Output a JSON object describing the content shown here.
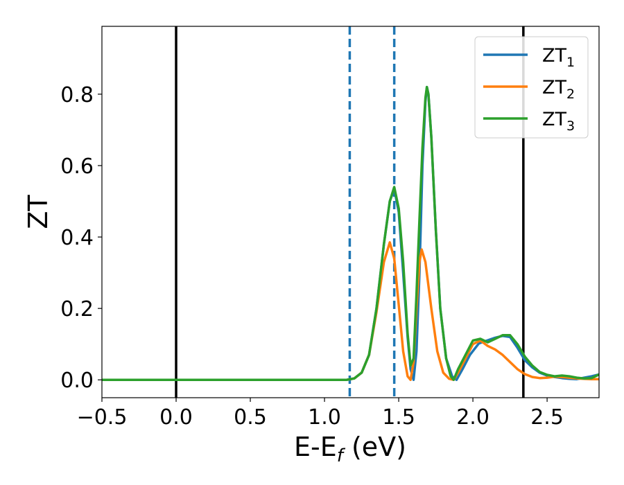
{
  "chart_data": {
    "type": "line",
    "title": "",
    "xlabel": {
      "main": "E-E",
      "subscript": "f",
      "tail": " (eV)"
    },
    "ylabel": "ZT",
    "xlim": [
      -0.5,
      2.85
    ],
    "ylim": [
      -0.05,
      0.99
    ],
    "x_ticks": [
      -0.5,
      0.0,
      0.5,
      1.0,
      1.5,
      2.0,
      2.5
    ],
    "x_tick_labels": [
      "−0.5",
      "0.0",
      "0.5",
      "1.0",
      "1.5",
      "2.0",
      "2.5"
    ],
    "y_ticks": [
      0.0,
      0.2,
      0.4,
      0.6,
      0.8
    ],
    "y_tick_labels": [
      "0.0",
      "0.2",
      "0.4",
      "0.6",
      "0.8"
    ],
    "grid": false,
    "legend_position": "top-right",
    "vertical_lines": [
      {
        "x": 0.0,
        "style": "solid",
        "color": "#000000"
      },
      {
        "x": 2.34,
        "style": "solid",
        "color": "#000000"
      },
      {
        "x": 1.17,
        "style": "dashed",
        "color": "#1f77b4"
      },
      {
        "x": 1.47,
        "style": "dashed",
        "color": "#1f77b4"
      }
    ],
    "series": [
      {
        "name": "ZT",
        "name_sub": "1",
        "color": "#1f77b4",
        "points": [
          [
            -0.5,
            0
          ],
          [
            1.0,
            0
          ],
          [
            1.15,
            0
          ],
          [
            1.2,
            0.004
          ],
          [
            1.25,
            0.02
          ],
          [
            1.3,
            0.07
          ],
          [
            1.35,
            0.2
          ],
          [
            1.4,
            0.38
          ],
          [
            1.44,
            0.5
          ],
          [
            1.47,
            0.535
          ],
          [
            1.5,
            0.47
          ],
          [
            1.53,
            0.3
          ],
          [
            1.56,
            0.12
          ],
          [
            1.58,
            0.03
          ],
          [
            1.6,
            0.0
          ],
          [
            1.62,
            0.08
          ],
          [
            1.64,
            0.3
          ],
          [
            1.66,
            0.6
          ],
          [
            1.68,
            0.78
          ],
          [
            1.69,
            0.82
          ],
          [
            1.7,
            0.8
          ],
          [
            1.72,
            0.68
          ],
          [
            1.75,
            0.42
          ],
          [
            1.78,
            0.2
          ],
          [
            1.82,
            0.06
          ],
          [
            1.86,
            0.01
          ],
          [
            1.89,
            0.0
          ],
          [
            1.93,
            0.03
          ],
          [
            1.98,
            0.07
          ],
          [
            2.04,
            0.102
          ],
          [
            2.08,
            0.108
          ],
          [
            2.15,
            0.118
          ],
          [
            2.2,
            0.123
          ],
          [
            2.25,
            0.12
          ],
          [
            2.3,
            0.09
          ],
          [
            2.35,
            0.055
          ],
          [
            2.4,
            0.035
          ],
          [
            2.45,
            0.02
          ],
          [
            2.5,
            0.012
          ],
          [
            2.55,
            0.008
          ],
          [
            2.6,
            0.005
          ],
          [
            2.65,
            0.003
          ],
          [
            2.7,
            0.002
          ],
          [
            2.75,
            0.006
          ],
          [
            2.8,
            0.01
          ],
          [
            2.85,
            0.015
          ]
        ]
      },
      {
        "name": "ZT",
        "name_sub": "2",
        "color": "#ff7f0e",
        "points": [
          [
            -0.5,
            0
          ],
          [
            1.0,
            0
          ],
          [
            1.15,
            0
          ],
          [
            1.2,
            0.004
          ],
          [
            1.25,
            0.02
          ],
          [
            1.3,
            0.07
          ],
          [
            1.35,
            0.19
          ],
          [
            1.4,
            0.33
          ],
          [
            1.44,
            0.385
          ],
          [
            1.47,
            0.34
          ],
          [
            1.5,
            0.21
          ],
          [
            1.53,
            0.08
          ],
          [
            1.56,
            0.01
          ],
          [
            1.58,
            0.0
          ],
          [
            1.6,
            0.05
          ],
          [
            1.62,
            0.2
          ],
          [
            1.64,
            0.33
          ],
          [
            1.655,
            0.365
          ],
          [
            1.68,
            0.33
          ],
          [
            1.72,
            0.2
          ],
          [
            1.76,
            0.08
          ],
          [
            1.8,
            0.02
          ],
          [
            1.84,
            0.003
          ],
          [
            1.87,
            0.0
          ],
          [
            1.9,
            0.02
          ],
          [
            1.95,
            0.06
          ],
          [
            2.0,
            0.1
          ],
          [
            2.05,
            0.11
          ],
          [
            2.1,
            0.095
          ],
          [
            2.15,
            0.085
          ],
          [
            2.2,
            0.07
          ],
          [
            2.25,
            0.05
          ],
          [
            2.3,
            0.03
          ],
          [
            2.35,
            0.016
          ],
          [
            2.4,
            0.008
          ],
          [
            2.45,
            0.005
          ],
          [
            2.5,
            0.006
          ],
          [
            2.55,
            0.009
          ],
          [
            2.6,
            0.008
          ],
          [
            2.65,
            0.006
          ],
          [
            2.7,
            0.004
          ],
          [
            2.75,
            0.003
          ],
          [
            2.8,
            0.002
          ],
          [
            2.85,
            0.002
          ]
        ]
      },
      {
        "name": "ZT",
        "name_sub": "3",
        "color": "#2ca02c",
        "points": [
          [
            -0.5,
            0
          ],
          [
            1.0,
            0
          ],
          [
            1.15,
            0
          ],
          [
            1.2,
            0.004
          ],
          [
            1.25,
            0.02
          ],
          [
            1.3,
            0.07
          ],
          [
            1.35,
            0.2
          ],
          [
            1.4,
            0.38
          ],
          [
            1.44,
            0.5
          ],
          [
            1.47,
            0.54
          ],
          [
            1.5,
            0.48
          ],
          [
            1.53,
            0.33
          ],
          [
            1.56,
            0.13
          ],
          [
            1.58,
            0.04
          ],
          [
            1.6,
            0.06
          ],
          [
            1.62,
            0.24
          ],
          [
            1.64,
            0.45
          ],
          [
            1.66,
            0.65
          ],
          [
            1.68,
            0.79
          ],
          [
            1.69,
            0.82
          ],
          [
            1.7,
            0.8
          ],
          [
            1.72,
            0.68
          ],
          [
            1.75,
            0.42
          ],
          [
            1.78,
            0.2
          ],
          [
            1.82,
            0.06
          ],
          [
            1.85,
            0.01
          ],
          [
            1.87,
            0.0
          ],
          [
            1.9,
            0.03
          ],
          [
            1.95,
            0.07
          ],
          [
            2.0,
            0.11
          ],
          [
            2.05,
            0.115
          ],
          [
            2.1,
            0.105
          ],
          [
            2.15,
            0.115
          ],
          [
            2.2,
            0.125
          ],
          [
            2.25,
            0.125
          ],
          [
            2.3,
            0.1
          ],
          [
            2.35,
            0.065
          ],
          [
            2.4,
            0.04
          ],
          [
            2.45,
            0.022
          ],
          [
            2.5,
            0.014
          ],
          [
            2.55,
            0.01
          ],
          [
            2.6,
            0.012
          ],
          [
            2.65,
            0.01
          ],
          [
            2.7,
            0.006
          ],
          [
            2.75,
            0.004
          ],
          [
            2.8,
            0.005
          ],
          [
            2.85,
            0.015
          ]
        ]
      }
    ]
  }
}
